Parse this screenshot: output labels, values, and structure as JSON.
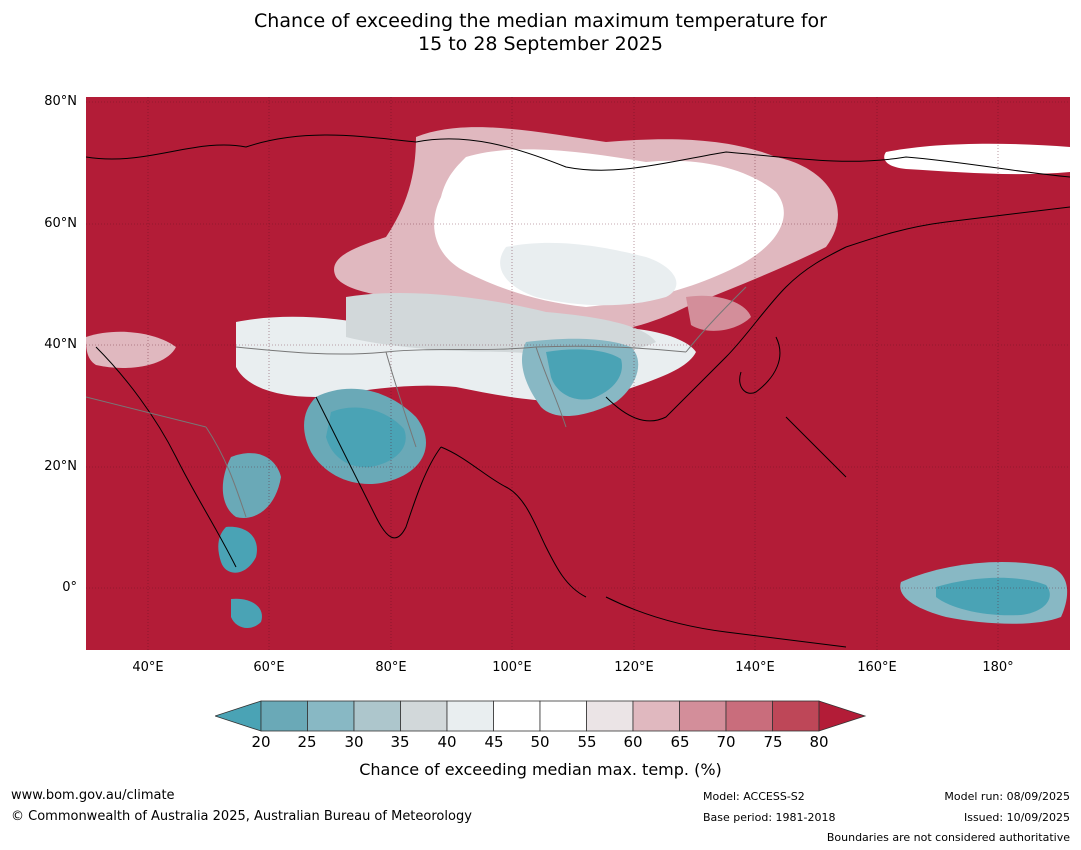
{
  "title_line1": "Chance of exceeding the median maximum temperature for",
  "title_line2": "15 to 28 September 2025",
  "lat_labels": [
    "80°N",
    "60°N",
    "40°N",
    "20°N",
    "0°"
  ],
  "lon_labels": [
    "40°E",
    "60°E",
    "80°E",
    "100°E",
    "120°E",
    "140°E",
    "160°E",
    "180°"
  ],
  "colorbar": {
    "ticks": [
      "20",
      "25",
      "30",
      "35",
      "40",
      "45",
      "50",
      "55",
      "60",
      "65",
      "70",
      "75",
      "80"
    ],
    "colors": [
      "#4aa3b5",
      "#6aa9b7",
      "#88b8c4",
      "#adc6cc",
      "#d2d8da",
      "#e9eef0",
      "#ffffff",
      "#ffffff",
      "#ebe4e6",
      "#e0b8bf",
      "#d38e9a",
      "#c96d7c",
      "#be4758",
      "#b31c37"
    ],
    "label": "Chance of exceeding median max. temp. (%)"
  },
  "footer": {
    "website": "www.bom.gov.au/climate",
    "copyright": "© Commonwealth of Australia 2025, Australian Bureau of Meteorology",
    "model": "Model: ACCESS-S2",
    "base_period": "Base period: 1981-2018",
    "model_run": "Model run: 08/09/2025",
    "issued": "Issued: 10/09/2025",
    "disclaimer": "Boundaries are not considered authoritative"
  }
}
